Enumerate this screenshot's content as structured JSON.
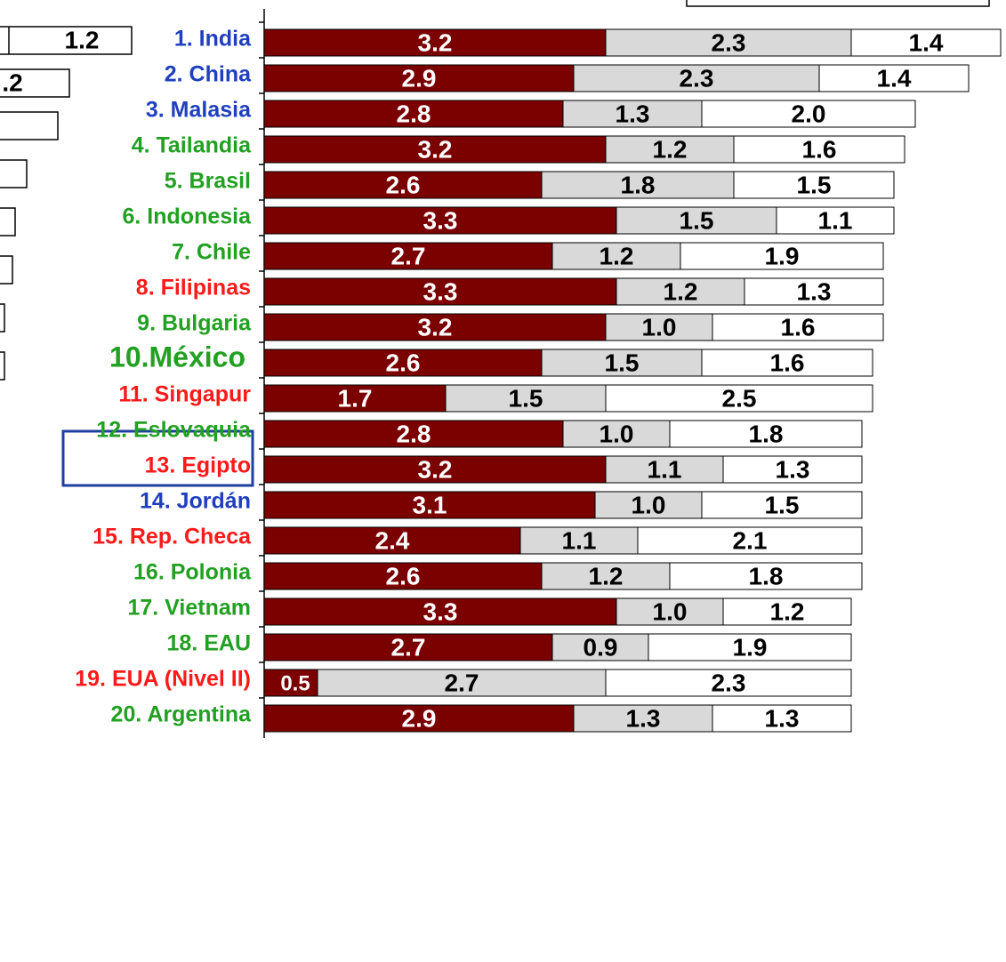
{
  "chart_data": {
    "type": "stacked-barh",
    "categories": [
      "1. India",
      "2. China",
      "3. Malasia",
      "4. Tailandia",
      "5. Brasil",
      "6. Indonesia",
      "7. Chile",
      "8. Filipinas",
      "9. Bulgaria",
      "10.México",
      "11. Singapur",
      "12. Eslovaquia",
      "13. Egipto",
      "14. Jordán",
      "15. Rep. Checa",
      "16. Polonia",
      "17. Vietnam",
      "18. EAU",
      "19. EUA (Nivel II)",
      "20. Argentina"
    ],
    "label_colors": [
      "#1f3fbf",
      "#1f3fbf",
      "#1f3fbf",
      "#22a022",
      "#22a022",
      "#22a022",
      "#22a022",
      "#ff1a1a",
      "#22a022",
      "#22a022",
      "#ff1a1a",
      "#22a022",
      "#ff1a1a",
      "#1f3fbf",
      "#ff1a1a",
      "#22a022",
      "#22a022",
      "#22a022",
      "#ff1a1a",
      "#22a022"
    ],
    "series": [
      {
        "color": "#7b0000",
        "label_color": "#ffffff",
        "values": [
          3.2,
          2.9,
          2.8,
          3.2,
          2.6,
          3.3,
          2.7,
          3.3,
          3.2,
          2.6,
          1.7,
          2.8,
          3.2,
          3.1,
          2.4,
          2.6,
          3.3,
          2.7,
          0.5,
          2.9
        ],
        "value_labels": [
          "3.2",
          "2.9",
          "2.8",
          "3.2",
          "2.6",
          "3.3",
          "2.7",
          "3.3",
          "3.2",
          "2.6",
          "1.7",
          "2.8",
          "3.2",
          "3.1",
          "2.4",
          "2.6",
          "3.3",
          "2.7",
          "0.5",
          "2.9"
        ]
      },
      {
        "color": "#d9d9d9",
        "label_color": "#000000",
        "values": [
          2.3,
          2.3,
          1.3,
          1.2,
          1.8,
          1.5,
          1.2,
          1.2,
          1.0,
          1.5,
          1.5,
          1.0,
          1.1,
          1.0,
          1.1,
          1.2,
          1.0,
          0.9,
          2.7,
          1.3
        ],
        "value_labels": [
          "2.3",
          "2.3",
          "1.3",
          "1.2",
          "1.8",
          "1.5",
          "1.2",
          "1.2",
          "1.0",
          "1.5",
          "1.5",
          "1.0",
          "1.1",
          "1.0",
          "1.1",
          "1.2",
          "1.0",
          "0.9",
          "2.7",
          "1.3"
        ]
      },
      {
        "color": "#ffffff",
        "label_color": "#000000",
        "values": [
          1.4,
          1.4,
          2.0,
          1.6,
          1.5,
          1.1,
          1.9,
          1.3,
          1.6,
          1.6,
          2.5,
          1.8,
          1.3,
          1.5,
          2.1,
          1.8,
          1.2,
          1.9,
          2.3,
          1.3
        ],
        "value_labels": [
          "1.4",
          "1.4",
          "2.0",
          "1.6",
          "1.5",
          "1.1",
          "1.9",
          "1.3",
          "1.6",
          "1.6",
          "2.5",
          "1.8",
          "1.3",
          "1.5",
          "2.1",
          "1.8",
          "1.2",
          "1.9",
          "2.3",
          "1.3"
        ]
      }
    ],
    "xlim": [
      0,
      7
    ],
    "highlight": "10.México"
  },
  "side_labels": [
    "1.2",
    ".2"
  ]
}
